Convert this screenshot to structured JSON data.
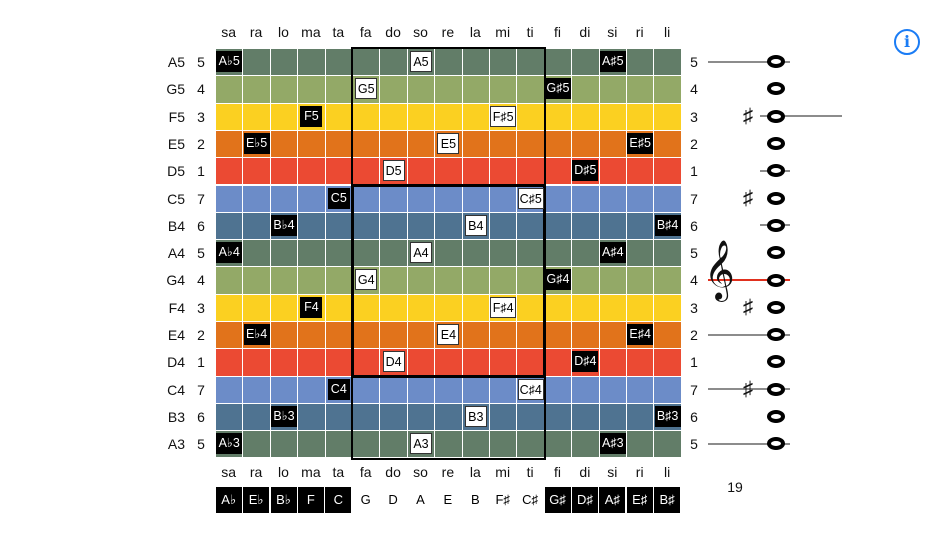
{
  "top_headers": [
    "sa",
    "ra",
    "lo",
    "ma",
    "ta",
    "fa",
    "do",
    "so",
    "re",
    "la",
    "mi",
    "ti",
    "fi",
    "di",
    "si",
    "ri",
    "li"
  ],
  "bottom_headers": [
    "sa",
    "ra",
    "lo",
    "ma",
    "ta",
    "fa",
    "do",
    "so",
    "re",
    "la",
    "mi",
    "ti",
    "fi",
    "di",
    "si",
    "ri",
    "li"
  ],
  "key_names": [
    {
      "label": "A♭",
      "style": "black"
    },
    {
      "label": "E♭",
      "style": "black"
    },
    {
      "label": "B♭",
      "style": "black"
    },
    {
      "label": "F",
      "style": "black"
    },
    {
      "label": "C",
      "style": "black"
    },
    {
      "label": "G",
      "style": "white"
    },
    {
      "label": "D",
      "style": "white"
    },
    {
      "label": "A",
      "style": "white"
    },
    {
      "label": "E",
      "style": "white"
    },
    {
      "label": "B",
      "style": "white"
    },
    {
      "label": "F♯",
      "style": "white"
    },
    {
      "label": "C♯",
      "style": "white"
    },
    {
      "label": "G♯",
      "style": "black"
    },
    {
      "label": "D♯",
      "style": "black"
    },
    {
      "label": "A♯",
      "style": "black"
    },
    {
      "label": "E♯",
      "style": "black"
    },
    {
      "label": "B♯",
      "style": "black"
    }
  ],
  "rows": [
    {
      "name": "A5",
      "num": "5",
      "right_num": "5",
      "color": "#627d68",
      "labels": [
        {
          "col": 0,
          "text": "A♭5"
        },
        {
          "col": 7,
          "text": "A5"
        },
        {
          "col": 14,
          "text": "A♯5"
        }
      ]
    },
    {
      "name": "G5",
      "num": "4",
      "right_num": "4",
      "color": "#93a967",
      "labels": [
        {
          "col": 5,
          "text": "G5"
        },
        {
          "col": 12,
          "text": "G♯5"
        }
      ]
    },
    {
      "name": "F5",
      "num": "3",
      "right_num": "3",
      "color": "#fbd021",
      "labels": [
        {
          "col": 3,
          "text": "F5"
        },
        {
          "col": 10,
          "text": "F♯5"
        }
      ]
    },
    {
      "name": "E5",
      "num": "2",
      "right_num": "2",
      "color": "#e1731b",
      "labels": [
        {
          "col": 1,
          "text": "E♭5"
        },
        {
          "col": 8,
          "text": "E5"
        },
        {
          "col": 15,
          "text": "E♯5"
        }
      ]
    },
    {
      "name": "D5",
      "num": "1",
      "right_num": "1",
      "color": "#eb4a33",
      "labels": [
        {
          "col": 6,
          "text": "D5"
        },
        {
          "col": 13,
          "text": "D♯5"
        }
      ]
    },
    {
      "name": "C5",
      "num": "7",
      "right_num": "7",
      "color": "#6c8cc8",
      "labels": [
        {
          "col": 4,
          "text": "C5"
        },
        {
          "col": 11,
          "text": "C♯5"
        }
      ]
    },
    {
      "name": "B4",
      "num": "6",
      "right_num": "6",
      "color": "#4f7391",
      "labels": [
        {
          "col": 2,
          "text": "B♭4"
        },
        {
          "col": 9,
          "text": "B4"
        },
        {
          "col": 16,
          "text": "B♯4"
        }
      ]
    },
    {
      "name": "A4",
      "num": "5",
      "right_num": "5",
      "color": "#627d68",
      "labels": [
        {
          "col": 0,
          "text": "A♭4"
        },
        {
          "col": 7,
          "text": "A4"
        },
        {
          "col": 14,
          "text": "A♯4"
        }
      ]
    },
    {
      "name": "G4",
      "num": "4",
      "right_num": "4",
      "color": "#93a967",
      "labels": [
        {
          "col": 5,
          "text": "G4"
        },
        {
          "col": 12,
          "text": "G♯4"
        }
      ]
    },
    {
      "name": "F4",
      "num": "3",
      "right_num": "3",
      "color": "#fbd021",
      "labels": [
        {
          "col": 3,
          "text": "F4"
        },
        {
          "col": 10,
          "text": "F♯4"
        }
      ]
    },
    {
      "name": "E4",
      "num": "2",
      "right_num": "2",
      "color": "#e1731b",
      "labels": [
        {
          "col": 1,
          "text": "E♭4"
        },
        {
          "col": 8,
          "text": "E4"
        },
        {
          "col": 15,
          "text": "E♯4"
        }
      ]
    },
    {
      "name": "D4",
      "num": "1",
      "right_num": "1",
      "color": "#eb4a33",
      "labels": [
        {
          "col": 6,
          "text": "D4"
        },
        {
          "col": 13,
          "text": "D♯4"
        }
      ]
    },
    {
      "name": "C4",
      "num": "7",
      "right_num": "7",
      "color": "#6c8cc8",
      "labels": [
        {
          "col": 4,
          "text": "C4"
        },
        {
          "col": 11,
          "text": "C♯4"
        }
      ]
    },
    {
      "name": "B3",
      "num": "6",
      "right_num": "6",
      "color": "#4f7391",
      "labels": [
        {
          "col": 2,
          "text": "B♭3"
        },
        {
          "col": 9,
          "text": "B3"
        },
        {
          "col": 16,
          "text": "B♯3"
        }
      ]
    },
    {
      "name": "A3",
      "num": "5",
      "right_num": "5",
      "color": "#627d68",
      "labels": [
        {
          "col": 0,
          "text": "A♭3"
        },
        {
          "col": 7,
          "text": "A3"
        },
        {
          "col": 14,
          "text": "A♯3"
        }
      ]
    }
  ],
  "staff": [
    {
      "line": "gray",
      "sharp": false
    },
    {
      "line": "none",
      "sharp": false
    },
    {
      "line": "gray",
      "sharp": true
    },
    {
      "line": "none",
      "sharp": false
    },
    {
      "line": "gray",
      "sharp": false
    },
    {
      "line": "none",
      "sharp": true
    },
    {
      "line": "gray",
      "sharp": false
    },
    {
      "line": "none",
      "sharp": false
    },
    {
      "line": "red",
      "sharp": false
    },
    {
      "line": "none",
      "sharp": true
    },
    {
      "line": "gray",
      "sharp": false
    },
    {
      "line": "none",
      "sharp": false
    },
    {
      "line": "gray",
      "sharp": true
    },
    {
      "line": "none",
      "sharp": false
    },
    {
      "line": "gray",
      "sharp": false
    }
  ],
  "sharp_symbol": "♯",
  "clef_symbol": "𝄞",
  "info_symbol": "i",
  "count": "19",
  "colors": {
    "grid_line": "#ffffff",
    "frame": "#000000",
    "staff_line": "#8c8c8c",
    "middle_line": "#e0301e",
    "info": "#1a7cf5"
  }
}
